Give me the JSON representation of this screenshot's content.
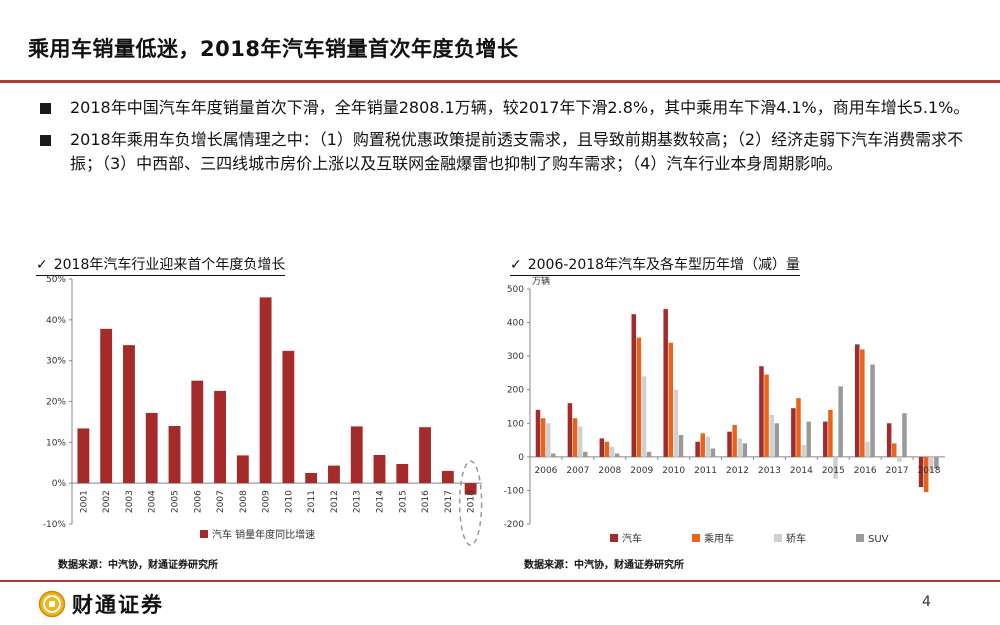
{
  "page": {
    "title": "乘用车销量低迷，2018年汽车销量首次年度负增长",
    "bullets": [
      "2018年中国汽车年度销量首次下滑，全年销量2808.1万辆，较2017年下滑2.8%，其中乘用车下滑4.1%，商用车增长5.1%。",
      "2018年乘用车负增长属情理之中：（1）购置税优惠政策提前透支需求，且导致前期基数较高；（2）经济走弱下汽车消费需求不振；（3）中西部、三四线城市房价上涨以及互联网金融爆雷也抑制了购车需求；（4）汽车行业本身周期影响。"
    ],
    "check_mark": "✓",
    "source_left": "数据来源：中汽协，财通证券研究所",
    "source_right": "数据来源：中汽协，财通证券研究所",
    "logo_text": "财通证券",
    "page_number": "4",
    "accent_color": "#b5383a"
  },
  "chart_data": [
    {
      "type": "bar",
      "title": "2018年汽车行业迎来首个年度负增长",
      "categories": [
        "2001",
        "2002",
        "2003",
        "2004",
        "2005",
        "2006",
        "2007",
        "2008",
        "2009",
        "2010",
        "2011",
        "2012",
        "2013",
        "2014",
        "2015",
        "2016",
        "2017",
        "2018"
      ],
      "series": [
        {
          "name": "汽车 销量年度同比增速",
          "color": "#a52a2a",
          "values": [
            13.4,
            37.8,
            33.8,
            17.2,
            14.0,
            25.1,
            22.6,
            6.8,
            45.5,
            32.4,
            2.5,
            4.3,
            13.9,
            6.9,
            4.7,
            13.7,
            3.0,
            -2.8
          ]
        }
      ],
      "ylim": [
        -10,
        50
      ],
      "yticks": [
        "-10%",
        "0%",
        "10%",
        "20%",
        "30%",
        "40%",
        "50%"
      ],
      "highlight": "2018"
    },
    {
      "type": "bar",
      "title": "2006-2018年汽车及各车型历年增（减）量",
      "unit_label": "万辆",
      "categories": [
        "2006",
        "2007",
        "2008",
        "2009",
        "2010",
        "2011",
        "2012",
        "2013",
        "2014",
        "2015",
        "2016",
        "2017",
        "2018"
      ],
      "series": [
        {
          "name": "汽车",
          "color": "#a52a2a",
          "values": [
            140,
            160,
            55,
            425,
            440,
            45,
            75,
            270,
            145,
            105,
            335,
            100,
            -90
          ]
        },
        {
          "name": "乘用车",
          "color": "#e8641b",
          "values": [
            115,
            115,
            45,
            355,
            340,
            70,
            95,
            245,
            175,
            140,
            320,
            40,
            -105
          ]
        },
        {
          "name": "轿车",
          "color": "#d0d0d0",
          "values": [
            100,
            90,
            30,
            240,
            200,
            60,
            55,
            125,
            35,
            -65,
            45,
            -15,
            -45
          ]
        },
        {
          "name": "SUV",
          "color": "#9a9a9a",
          "values": [
            10,
            15,
            10,
            15,
            65,
            25,
            40,
            100,
            105,
            210,
            275,
            130,
            -35
          ]
        }
      ],
      "ylim": [
        -200,
        500
      ],
      "yticks": [
        "-200",
        "-100",
        "0",
        "100",
        "200",
        "300",
        "400",
        "500"
      ]
    }
  ]
}
